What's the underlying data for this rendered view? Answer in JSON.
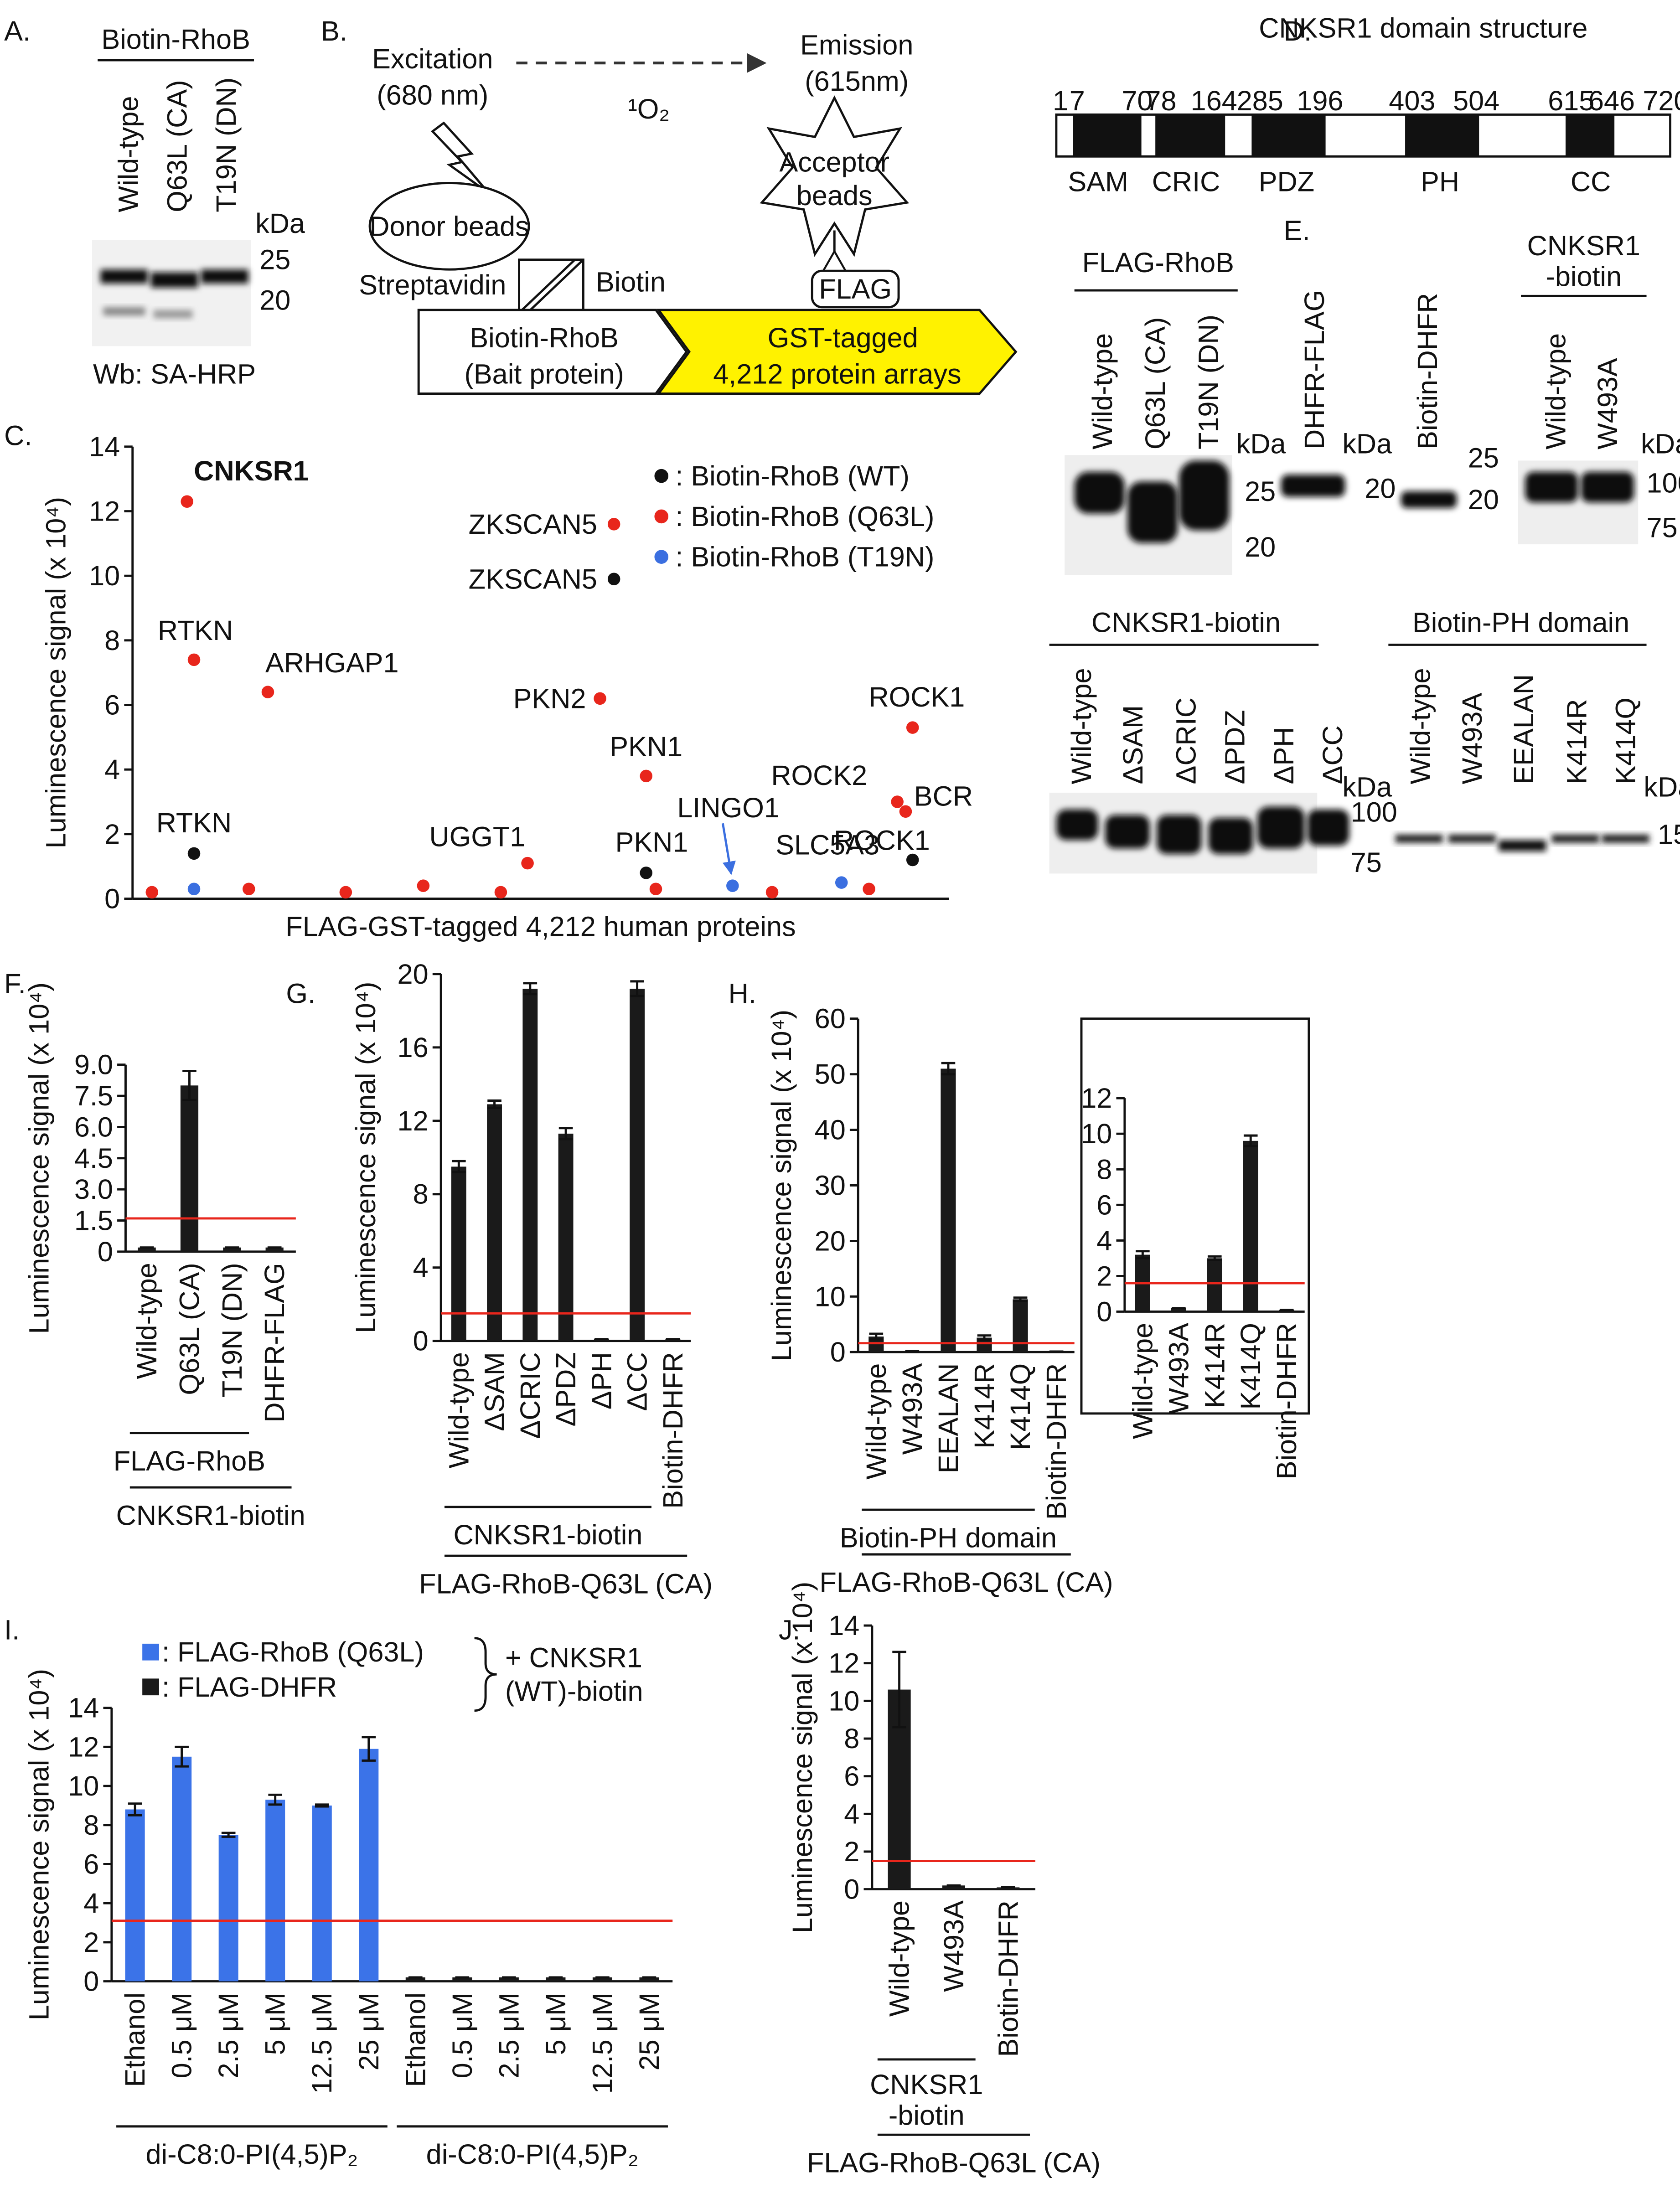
{
  "panel_labels": [
    "A.",
    "B.",
    "C.",
    "D.",
    "E.",
    "F.",
    "G.",
    "H.",
    "I.",
    "J."
  ],
  "panel_a": {
    "title": "Biotin-RhoB",
    "lanes": [
      "Wild-type",
      "Q63L (CA)",
      "T19N (DN)"
    ],
    "unit": "kDa",
    "markers": [
      "25",
      "20"
    ],
    "caption": "Wb: SA-HRP"
  },
  "panel_b": {
    "excitation": "Excitation",
    "excitation_wl": "(680 nm)",
    "singlet": "¹O₂",
    "emission": "Emission",
    "emission_wl": "(615nm)",
    "donor": "Donor beads",
    "acceptor": [
      "Acceptor",
      "beads"
    ],
    "flag": "FLAG",
    "streptavidin": "Streptavidin",
    "biotin": "Biotin",
    "bait": [
      "Biotin-RhoB",
      "(Bait protein)"
    ],
    "arrays": [
      "GST-tagged",
      "4,212 protein arrays"
    ]
  },
  "panel_d": {
    "title": "CNKSR1 domain structure",
    "positions": [
      "1",
      "7",
      "70",
      "78",
      "164",
      "285",
      "196",
      "403",
      "504",
      "615",
      "646",
      "720"
    ],
    "domains": [
      "SAM",
      "CRIC",
      "PDZ",
      "PH",
      "CC"
    ]
  },
  "panel_e": {
    "unit": "kDa",
    "flag_rhob": {
      "title": "FLAG-RhoB",
      "lanes": [
        "Wild-type",
        "Q63L (CA)",
        "T19N (DN)"
      ],
      "markers": [
        "25",
        "20"
      ]
    },
    "dhfr_flag": {
      "title": "DHFR-FLAG",
      "markers": [
        "20"
      ]
    },
    "biotin_dhfr": {
      "title": "Biotin-DHFR",
      "markers": [
        "25",
        "20"
      ]
    },
    "cnksr1_biotin": {
      "title": [
        "CNKSR1",
        "-biotin"
      ],
      "lanes": [
        "Wild-type",
        "W493A"
      ],
      "markers": [
        "100",
        "75"
      ]
    },
    "cnksr1_deletions": {
      "title": "CNKSR1-biotin",
      "lanes": [
        "Wild-type",
        "ΔSAM",
        "ΔCRIC",
        "ΔPDZ",
        "ΔPH",
        "ΔCC"
      ],
      "markers": [
        "100",
        "75"
      ]
    },
    "ph_domain": {
      "title": "Biotin-PH domain",
      "lanes": [
        "Wild-type",
        "W493A",
        "EEALAN",
        "K414R",
        "K414Q"
      ],
      "markers": [
        "15"
      ]
    }
  },
  "chart_data": [
    {
      "type": "scatter",
      "ylabel": "Luminescence signal (x 10⁴)",
      "xlabel": "FLAG-GST-tagged 4,212 human proteins",
      "xlim": [
        0,
        4212
      ],
      "ylim": [
        0,
        14
      ],
      "yticks": [
        0,
        2,
        4,
        6,
        8,
        10,
        12,
        14
      ],
      "legend": "upper right",
      "series": [
        {
          "name": ": Biotin-RhoB (WT)",
          "color": "#111111",
          "x": [
            317,
            2484,
            2650,
            4025
          ],
          "values": [
            1.4,
            9.9,
            0.8,
            1.2
          ],
          "labels": [
            "RTKN",
            "ZKSCAN5",
            "PKN1",
            "ROCK1"
          ]
        },
        {
          "name": ": Biotin-RhoB (Q63L)",
          "color": "#e8261c",
          "x": [
            281,
            317,
            698,
            2412,
            2484,
            2650,
            2038,
            3946,
            3989,
            4025,
            100,
            600,
            1100,
            1500,
            1900,
            2700,
            3300,
            3800
          ],
          "values": [
            12.3,
            7.4,
            6.4,
            6.2,
            11.6,
            3.8,
            1.1,
            3.0,
            2.7,
            5.3,
            0.2,
            0.3,
            0.2,
            0.4,
            0.2,
            0.3,
            0.2,
            0.3
          ],
          "labels": [
            "CNKSR1",
            "RTKN",
            "ARHGAP1",
            "PKN2",
            "ZKSCAN5",
            "PKN1",
            "UGGT1",
            "ROCK2",
            "BCR",
            "ROCK1",
            null,
            null,
            null,
            null,
            null,
            null,
            null,
            null
          ]
        },
        {
          "name": ": Biotin-RhoB (T19N)",
          "color": "#3b6fe0",
          "x": [
            317,
            3096,
            3658
          ],
          "values": [
            0.3,
            0.4,
            0.5
          ],
          "labels": [
            null,
            "LINGO1",
            "SLC5A3"
          ]
        }
      ]
    },
    {
      "type": "bar",
      "ylabel": "Luminescence signal (x 10⁴)",
      "categories": [
        "Wild-type",
        "Q63L (CA)",
        "T19N (DN)",
        "DHFR-FLAG"
      ],
      "values": [
        0.2,
        8.0,
        0.2,
        0.2
      ],
      "errors": [
        0,
        0.7,
        0,
        0
      ],
      "color": "#1a1a1a",
      "ylim": [
        0,
        9
      ],
      "yticks": [
        0,
        1.5,
        {
          "value": 3,
          "label": "3.0"
        },
        4.5,
        {
          "value": 6,
          "label": "6.0"
        },
        7.5,
        {
          "value": 9,
          "label": "9.0"
        }
      ],
      "threshold": 1.6,
      "threshold_color": "#e8261c",
      "group_labels": [
        "FLAG-RhoB",
        "CNKSR1-biotin"
      ]
    },
    {
      "type": "bar",
      "ylabel": "Luminescence signal (x 10⁴)",
      "categories": [
        "Wild-type",
        "ΔSAM",
        "ΔCRIC",
        "ΔPDZ",
        "ΔPH",
        "ΔCC",
        "Biotin-DHFR"
      ],
      "values": [
        9.5,
        12.9,
        19.2,
        11.3,
        0.1,
        19.2,
        0.1
      ],
      "errors": [
        0.3,
        0.2,
        0.3,
        0.3,
        0,
        0.4,
        0
      ],
      "color": "#1a1a1a",
      "ylim": [
        0,
        20
      ],
      "yticks": [
        0,
        4,
        8,
        12,
        16,
        20
      ],
      "threshold": 1.5,
      "threshold_color": "#e8261c",
      "group_labels": [
        "CNKSR1-biotin",
        "FLAG-RhoB-Q63L (CA)"
      ]
    },
    {
      "type": "bar",
      "ylabel": "Luminescence signal (x 10⁴)",
      "categories": [
        "Wild-type",
        "W493A",
        "EEALAN",
        "K414R",
        "K414Q",
        "Biotin-DHFR"
      ],
      "values": [
        2.8,
        0.2,
        51,
        2.6,
        9.5,
        0.1
      ],
      "errors": [
        0.5,
        0,
        1,
        0.4,
        0.3,
        0
      ],
      "color": "#1a1a1a",
      "ylim": [
        0,
        60
      ],
      "yticks": [
        0,
        10,
        20,
        30,
        40,
        50,
        60
      ],
      "threshold": 1.6,
      "threshold_color": "#e8261c",
      "group_labels": [
        "Biotin-PH domain",
        "FLAG-RhoB-Q63L (CA)"
      ]
    },
    {
      "type": "bar",
      "categories": [
        "Wild-type",
        "W493A",
        "K414R",
        "K414Q",
        "Biotin-DHFR"
      ],
      "values": [
        3.2,
        0.2,
        3.0,
        9.6,
        0.1
      ],
      "errors": [
        0.2,
        0,
        0.1,
        0.3,
        0
      ],
      "color": "#1a1a1a",
      "ylim": [
        0,
        12
      ],
      "yticks": [
        0,
        2,
        4,
        6,
        8,
        10,
        12
      ],
      "threshold": 1.6,
      "threshold_color": "#e8261c"
    },
    {
      "type": "bar",
      "ylabel": "Luminescence signal (x 10⁴)",
      "categories": [
        "Ethanol",
        "0.5 μM",
        "2.5 μM",
        "5 μM",
        "12.5 μM",
        "25 μM",
        "Ethanol",
        "0.5 μM",
        "2.5 μM",
        "5 μM",
        "12.5 μM",
        "25 μM"
      ],
      "series": [
        {
          "name": ": FLAG-RhoB (Q63L)",
          "color": "#3b73e8",
          "values": [
            8.8,
            11.5,
            7.5,
            9.3,
            9.0,
            11.9,
            null,
            null,
            null,
            null,
            null,
            null
          ],
          "errors": [
            0.3,
            0.5,
            0.1,
            0.25,
            0.05,
            0.6,
            null,
            null,
            null,
            null,
            null,
            null
          ]
        },
        {
          "name": ": FLAG-DHFR",
          "color": "#1a1a1a",
          "values": [
            null,
            null,
            null,
            null,
            null,
            null,
            0.2,
            0.2,
            0.2,
            0.2,
            0.2,
            0.2
          ],
          "errors": [
            null,
            null,
            null,
            null,
            null,
            null,
            0,
            0,
            0,
            0,
            0,
            0
          ]
        }
      ],
      "annotation": [
        "+ CNKSR1",
        "(WT)-biotin"
      ],
      "ylim": [
        0,
        14
      ],
      "yticks": [
        0,
        2,
        4,
        6,
        8,
        10,
        12,
        14
      ],
      "threshold": 3.1,
      "threshold_color": "#e8261c",
      "group_labels": [
        "di-C8:0-PI(4,5)P₂",
        "di-C8:0-PI(4,5)P₂"
      ]
    },
    {
      "type": "bar",
      "ylabel": "Luminescence signal (x 10⁴)",
      "categories": [
        "Wild-type",
        "W493A",
        "Biotin-DHFR"
      ],
      "values": [
        10.6,
        0.2,
        0.1
      ],
      "errors": [
        2.0,
        0,
        0
      ],
      "color": "#1a1a1a",
      "ylim": [
        0,
        14
      ],
      "yticks": [
        0,
        2,
        4,
        6,
        8,
        10,
        12,
        14
      ],
      "threshold": 1.5,
      "threshold_color": "#e8261c",
      "group_labels": [
        [
          "CNKSR1",
          "-biotin"
        ],
        "FLAG-RhoB-Q63L (CA)"
      ]
    }
  ]
}
